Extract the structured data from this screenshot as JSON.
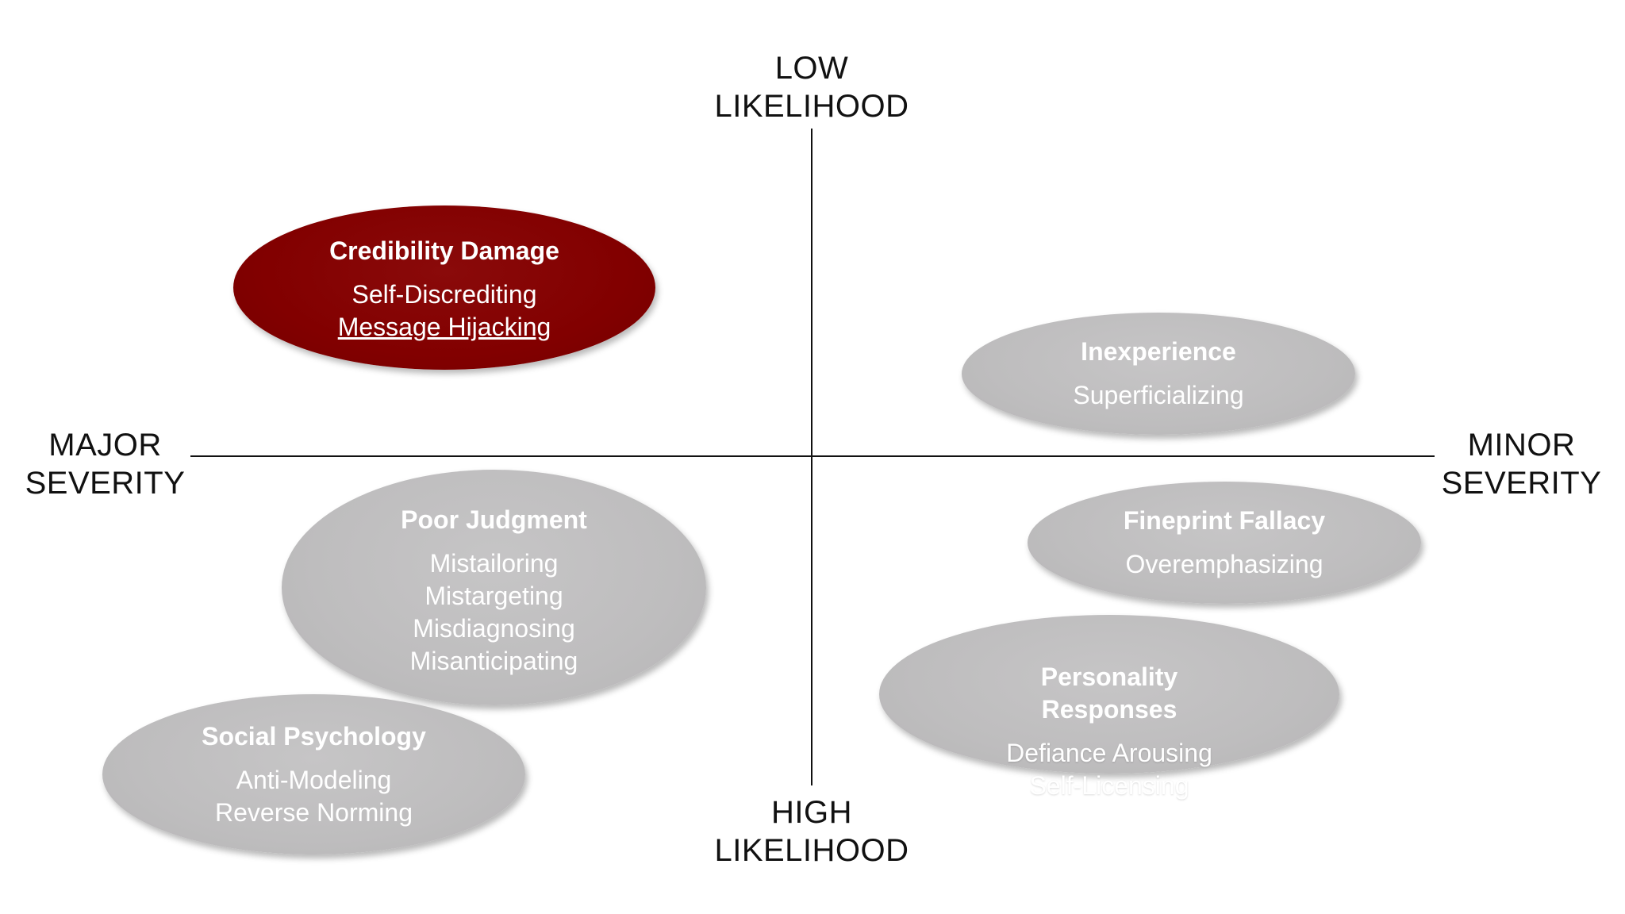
{
  "axes": {
    "top": [
      "LOW",
      "LIKELIHOOD"
    ],
    "bottom": [
      "HIGH",
      "LIKELIHOOD"
    ],
    "left": [
      "MAJOR",
      "SEVERITY"
    ],
    "right": [
      "MINOR",
      "SEVERITY"
    ]
  },
  "colors": {
    "highlight": "#820000",
    "neutral": "#bebdbe",
    "axis": "#111111",
    "text_on_ellipse": "#ffffff"
  },
  "categories": {
    "credibility": {
      "title": "Credibility Damage",
      "items": [
        "Self-Discrediting",
        "Message Hijacking"
      ],
      "highlighted": true
    },
    "inexperience": {
      "title": "Inexperience",
      "items": [
        "Superficializing"
      ]
    },
    "poor_judgment": {
      "title": "Poor Judgment",
      "items": [
        "Mistailoring",
        "Mistargeting",
        "Misdiagnosing",
        "Misanticipating"
      ]
    },
    "fineprint": {
      "title": "Fineprint Fallacy",
      "items": [
        "Overemphasizing"
      ]
    },
    "personality": {
      "title_lines": [
        "Personality",
        "Responses"
      ],
      "items": [
        "Defiance Arousing",
        "Self-Licensing"
      ]
    },
    "social": {
      "title": "Social Psychology",
      "items": [
        "Anti-Modeling",
        "Reverse Norming"
      ]
    }
  }
}
